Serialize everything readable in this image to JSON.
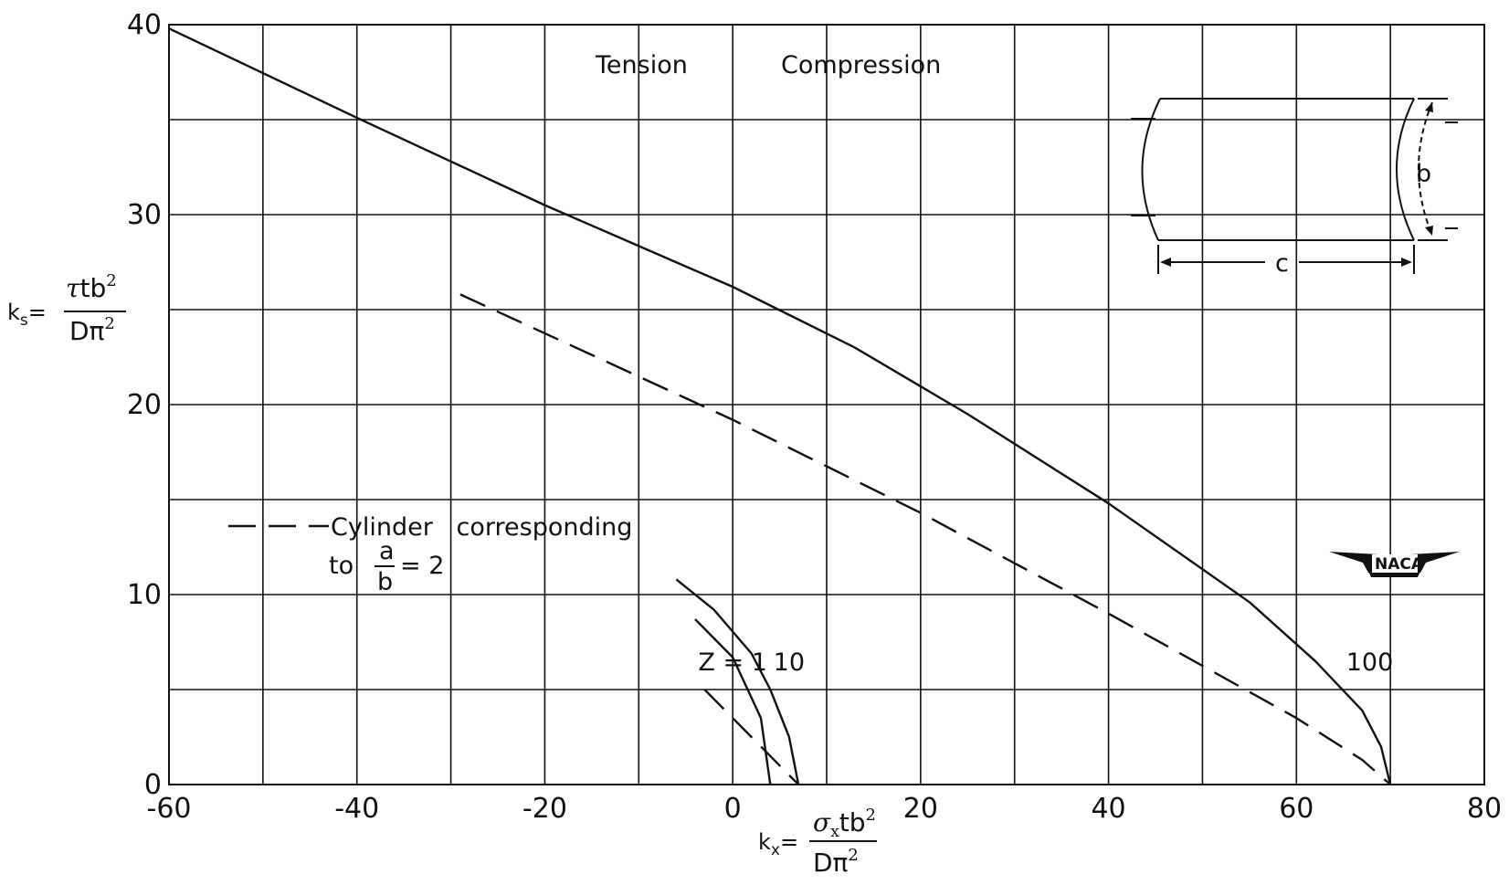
{
  "chart_data": {
    "type": "line",
    "title": "",
    "xlim": [
      -60,
      80
    ],
    "ylim": [
      0,
      40
    ],
    "x_ticks": [
      -60,
      -40,
      -20,
      0,
      20,
      40,
      60,
      80
    ],
    "y_ticks": [
      0,
      10,
      20,
      30,
      40
    ],
    "x_tick_labels": [
      "-60",
      "-40",
      "-20",
      "0",
      "20",
      "40",
      "60",
      "80"
    ],
    "y_tick_labels": [
      "0",
      "10",
      "20",
      "30",
      "40"
    ],
    "x_grid_step": 10,
    "y_grid_step": 5,
    "grid": true,
    "xlabel": {
      "prefix": "k",
      "sub": "x",
      "eq": "=",
      "num_sigma": "σ",
      "num_sigma_sub": "x",
      "num_rest": "tb",
      "num_sup": "2",
      "den": "Dπ",
      "den_sup": "2"
    },
    "ylabel": {
      "prefix": "k",
      "sub": "s",
      "eq": "=",
      "num_tau": "τ",
      "num_rest": "tb",
      "num_sup": "2",
      "den": "Dπ",
      "den_sup": "2"
    },
    "region_labels": {
      "left": "Tension",
      "right": "Compression"
    },
    "series": [
      {
        "name": "100",
        "style": "solid",
        "x": [
          -60,
          -40,
          -20,
          0,
          13,
          25,
          40,
          55,
          62,
          67,
          69,
          70
        ],
        "y": [
          39.8,
          35.1,
          30.5,
          26.2,
          23.0,
          19.5,
          14.8,
          9.6,
          6.5,
          3.9,
          2.0,
          0
        ]
      },
      {
        "name": "10",
        "style": "solid",
        "x": [
          -6,
          -2,
          2,
          4,
          6,
          7
        ],
        "y": [
          10.8,
          9.2,
          6.9,
          5.0,
          2.5,
          0
        ]
      },
      {
        "name": "Z = 1",
        "style": "solid",
        "x": [
          -4,
          0,
          3,
          4
        ],
        "y": [
          8.7,
          6.7,
          3.5,
          0
        ]
      },
      {
        "name": "Cylinder corresponding to a/b = 2",
        "style": "dashed",
        "legend_index": 0,
        "x": [
          -29,
          0,
          20,
          40,
          60,
          67,
          70
        ],
        "y": [
          25.8,
          19.2,
          14.3,
          9.0,
          3.5,
          1.3,
          0
        ]
      },
      {
        "name": "Cylinder corresponding to a/b = 2",
        "style": "dashed",
        "legend_index": 0,
        "x": [
          -3,
          7
        ],
        "y": [
          5.0,
          0
        ]
      }
    ],
    "curve_labels": [
      {
        "text": "Z = 1",
        "x": 0,
        "y": 6.0
      },
      {
        "text": "10",
        "x": 6.0,
        "y": 6.0
      },
      {
        "text": "100",
        "x": 67.8,
        "y": 6.0
      }
    ],
    "legend": {
      "line1": "Cylinder   corresponding",
      "line2_prefix": "to",
      "frac_num": "a",
      "frac_den": "b",
      "line2_suffix": "= 2"
    },
    "inset": {
      "dim_b": "b",
      "dim_c": "c"
    },
    "logo": "NACA"
  }
}
